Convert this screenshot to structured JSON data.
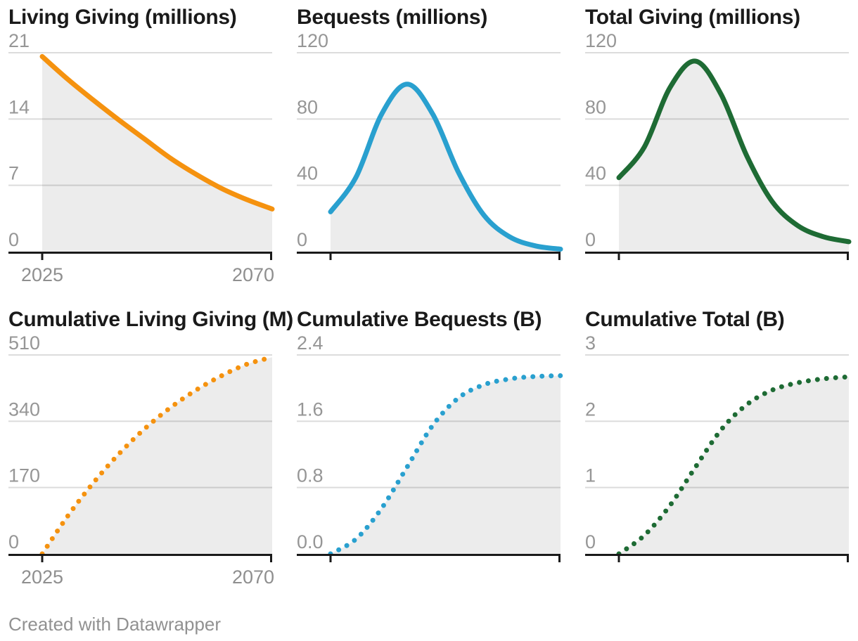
{
  "footer": {
    "attribution": "Created with Datawrapper"
  },
  "style": {
    "grid_color": "#dcdcdc",
    "axis_color": "#1a1a1a",
    "area_fill": "rgba(0,0,0,0.075)",
    "tick_label_color": "#969696",
    "title_color": "#1a1a1a",
    "orange": "#F5920F",
    "blue": "#29A0CF",
    "green": "#1E6B34"
  },
  "chart_data": [
    {
      "type": "area",
      "title": "Living Giving (millions)",
      "line_style": "solid",
      "color": "#F5920F",
      "x": [
        2025,
        2030,
        2035,
        2040,
        2045,
        2050,
        2055,
        2060,
        2065,
        2070
      ],
      "values": [
        20.6,
        18.2,
        16.0,
        13.9,
        11.9,
        9.9,
        8.2,
        6.7,
        5.5,
        4.5
      ],
      "y_ticks": [
        "0",
        "7",
        "14",
        "21"
      ],
      "y_max": 21,
      "x_range": [
        2025,
        2070
      ],
      "x_tick_labels": [
        "2025",
        "2070"
      ],
      "grid": true,
      "legend": "none"
    },
    {
      "type": "area",
      "title": "Bequests (millions)",
      "line_style": "solid",
      "color": "#29A0CF",
      "x": [
        2025,
        2030,
        2035,
        2040,
        2045,
        2050,
        2055,
        2060,
        2065,
        2070
      ],
      "values": [
        24,
        45,
        83,
        101,
        83,
        48,
        22,
        9,
        3.5,
        1.5
      ],
      "y_ticks": [
        "0",
        "40",
        "80",
        "120"
      ],
      "y_max": 120,
      "x_range": [
        2025,
        2070
      ],
      "x_tick_labels": [],
      "grid": true,
      "legend": "none"
    },
    {
      "type": "area",
      "title": "Total Giving (millions)",
      "line_style": "solid",
      "color": "#1E6B34",
      "x": [
        2025,
        2030,
        2035,
        2040,
        2045,
        2050,
        2055,
        2060,
        2065,
        2070
      ],
      "values": [
        44.6,
        63.2,
        99.0,
        114.9,
        94.9,
        57.9,
        30.2,
        15.7,
        9.0,
        6.0
      ],
      "y_ticks": [
        "0",
        "40",
        "80",
        "120"
      ],
      "y_max": 120,
      "x_range": [
        2025,
        2070
      ],
      "x_tick_labels": [],
      "grid": true,
      "legend": "none"
    },
    {
      "type": "area",
      "title": "Cumulative Living Giving (M)",
      "line_style": "dotted",
      "color": "#F5920F",
      "x": [
        2025,
        2030,
        2035,
        2040,
        2045,
        2050,
        2055,
        2060,
        2065,
        2070
      ],
      "values": [
        0,
        97,
        182,
        256,
        320,
        374,
        419,
        456,
        486,
        504
      ],
      "y_ticks": [
        "0",
        "170",
        "340",
        "510"
      ],
      "y_max": 510,
      "x_range": [
        2025,
        2070
      ],
      "x_tick_labels": [
        "2025",
        "2070"
      ],
      "grid": true,
      "legend": "none"
    },
    {
      "type": "area",
      "title": "Cumulative Bequests (B)",
      "line_style": "dotted",
      "color": "#29A0CF",
      "x": [
        2025,
        2030,
        2035,
        2040,
        2045,
        2050,
        2055,
        2060,
        2065,
        2070
      ],
      "values": [
        0,
        0.18,
        0.55,
        1.05,
        1.55,
        1.88,
        2.04,
        2.11,
        2.14,
        2.15
      ],
      "y_ticks": [
        "0.0",
        "0.8",
        "1.6",
        "2.4"
      ],
      "y_max": 2.4,
      "x_range": [
        2025,
        2070
      ],
      "x_tick_labels": [],
      "grid": true,
      "legend": "none"
    },
    {
      "type": "area",
      "title": "Cumulative Total (B)",
      "line_style": "dotted",
      "color": "#1E6B34",
      "x": [
        2025,
        2030,
        2035,
        2040,
        2045,
        2050,
        2055,
        2060,
        2065,
        2070
      ],
      "values": [
        0,
        0.28,
        0.73,
        1.31,
        1.87,
        2.25,
        2.47,
        2.58,
        2.64,
        2.67
      ],
      "y_ticks": [
        "0",
        "1",
        "2",
        "3"
      ],
      "y_max": 3,
      "x_range": [
        2025,
        2070
      ],
      "x_tick_labels": [],
      "grid": true,
      "legend": "none"
    }
  ]
}
